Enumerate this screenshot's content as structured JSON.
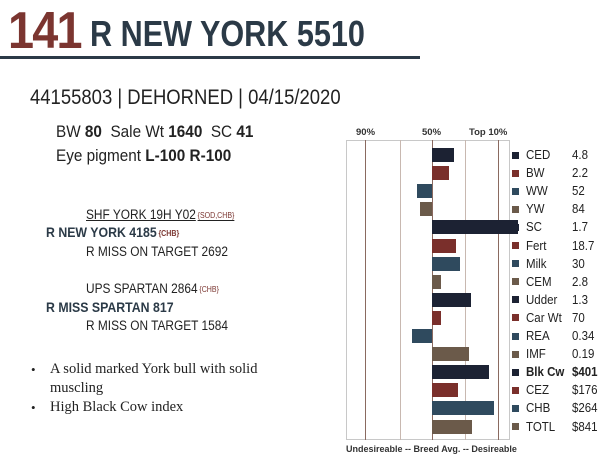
{
  "header": {
    "lot_number": "141",
    "name": "R NEW YORK 5510"
  },
  "registration_line": "44155803 | DEHORNED | 04/15/2020",
  "stats": {
    "bw_label": "BW",
    "bw_value": "80",
    "sale_wt_label": "Sale Wt",
    "sale_wt_value": "1640",
    "sc_label": "SC",
    "sc_value": "41",
    "eye_label": "Eye pigment",
    "eye_left": "L-100",
    "eye_right": "R-100"
  },
  "pedigree": {
    "sire_sire": "SHF YORK 19H Y02",
    "sire_sire_tag": "{SOD,CHB}",
    "sire": "R NEW YORK 4185",
    "sire_tag": "{CHB}",
    "sire_dam": "R MISS ON TARGET 2692",
    "dam_sire": "UPS SPARTAN 2864",
    "dam_sire_tag": "{CHB}",
    "dam": "R MISS SPARTAN 817",
    "dam_dam": "R MISS ON TARGET 1584"
  },
  "notes": [
    "A solid marked York bull with solid muscling",
    "High Black Cow index"
  ],
  "colors": {
    "brand_red": "#7b3530",
    "navy": "#1c2233",
    "red": "#7a2f2b",
    "blue": "#2f4a5e",
    "olive": "#6b5a4a",
    "maroon": "#5e1f1c"
  },
  "chart_data": {
    "type": "bar",
    "orientation": "horizontal",
    "header_labels": {
      "p90": "90%",
      "p50": "50%",
      "top": "Top 10%"
    },
    "footer": "Undesireable -- Breed Avg. -- Desireable",
    "scale": "percentile rank, baseline at breed average (50%); positive = toward desirable",
    "xlim": [
      -1,
      1
    ],
    "traits": [
      {
        "name": "CED",
        "value": "4.8",
        "bar": 0.25,
        "color": "#1c2233",
        "bold": false
      },
      {
        "name": "BW",
        "value": "2.2",
        "bar": 0.2,
        "color": "#7a2f2b",
        "bold": false
      },
      {
        "name": "WW",
        "value": "52",
        "bar": -0.18,
        "color": "#2f4a5e",
        "bold": false
      },
      {
        "name": "YW",
        "value": "84",
        "bar": -0.14,
        "color": "#6b5a4a",
        "bold": false
      },
      {
        "name": "SC",
        "value": "1.7",
        "bar": 1.0,
        "color": "#1c2233",
        "bold": false
      },
      {
        "name": "Fert",
        "value": "18.7",
        "bar": 0.28,
        "color": "#7a2f2b",
        "bold": false
      },
      {
        "name": "Milk",
        "value": "30",
        "bar": 0.33,
        "color": "#2f4a5e",
        "bold": false
      },
      {
        "name": "CEM",
        "value": "2.8",
        "bar": 0.1,
        "color": "#6b5a4a",
        "bold": false
      },
      {
        "name": "Udder",
        "value": "1.3",
        "bar": 0.45,
        "color": "#1c2233",
        "bold": false
      },
      {
        "name": "Car Wt",
        "value": "70",
        "bar": 0.1,
        "color": "#7a2f2b",
        "bold": false
      },
      {
        "name": "REA",
        "value": "0.34",
        "bar": -0.23,
        "color": "#2f4a5e",
        "bold": false
      },
      {
        "name": "IMF",
        "value": "0.19",
        "bar": 0.43,
        "color": "#6b5a4a",
        "bold": false
      },
      {
        "name": "Blk Cw",
        "value": "$401",
        "bar": 0.66,
        "color": "#1c2233",
        "bold": true
      },
      {
        "name": "CEZ",
        "value": "$176",
        "bar": 0.3,
        "color": "#7a2f2b",
        "bold": false
      },
      {
        "name": "CHB",
        "value": "$264",
        "bar": 0.72,
        "color": "#2f4a5e",
        "bold": false
      },
      {
        "name": "TOTL",
        "value": "$841",
        "bar": 0.47,
        "color": "#6b5a4a",
        "bold": false
      }
    ]
  }
}
